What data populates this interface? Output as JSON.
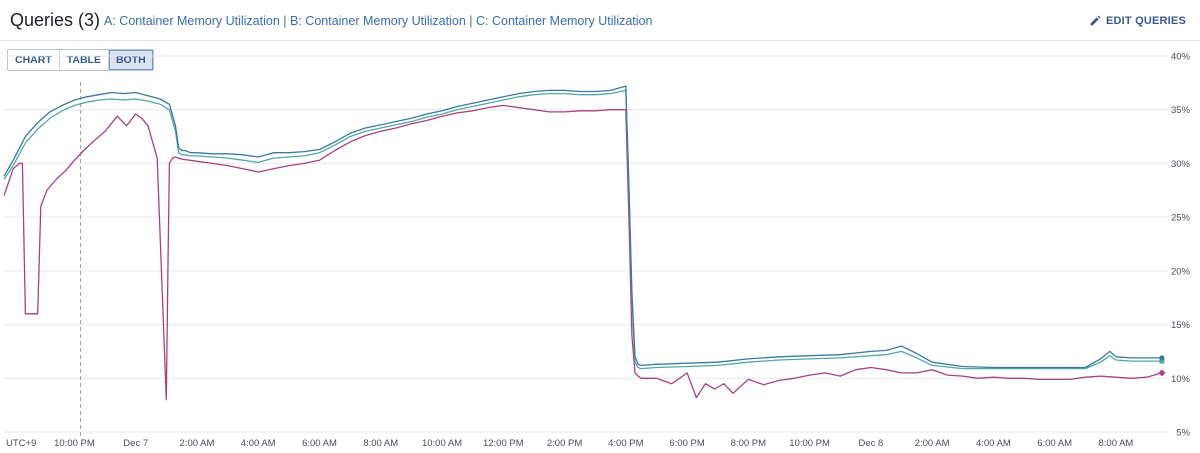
{
  "header": {
    "title": "Queries (3)",
    "queries": [
      {
        "letter": "A:",
        "name": "Container Memory Utilization"
      },
      {
        "letter": "B:",
        "name": "Container Memory Utilization"
      },
      {
        "letter": "C:",
        "name": "Container Memory Utilization"
      }
    ],
    "separator": "|",
    "edit_label": "EDIT QUERIES"
  },
  "view_toggle": {
    "options": [
      "CHART",
      "TABLE",
      "BOTH"
    ],
    "selected": "BOTH"
  },
  "colors": {
    "series_a": "#3b78a6",
    "series_b": "#52a9a6",
    "series_c": "#a8427e",
    "grid": "#e7e9ec",
    "cursor": "#9aa0a6"
  },
  "chart_data": {
    "type": "line",
    "ylim": [
      5,
      40
    ],
    "y_ticks": [
      "40%",
      "35%",
      "30%",
      "25%",
      "20%",
      "15%",
      "10%",
      "5%"
    ],
    "y_tick_values": [
      40,
      35,
      30,
      25,
      20,
      15,
      10,
      5
    ],
    "x_unit": "hours",
    "xlim": [
      -2.3,
      35.7
    ],
    "x_ticks": [
      {
        "label": "UTC+9",
        "x": -2.0
      },
      {
        "label": "10:00 PM",
        "x": 0
      },
      {
        "label": "Dec 7",
        "x": 2
      },
      {
        "label": "2:00 AM",
        "x": 4
      },
      {
        "label": "4:00 AM",
        "x": 6
      },
      {
        "label": "6:00 AM",
        "x": 8
      },
      {
        "label": "8:00 AM",
        "x": 10
      },
      {
        "label": "10:00 AM",
        "x": 12
      },
      {
        "label": "12:00 PM",
        "x": 14
      },
      {
        "label": "2:00 PM",
        "x": 16
      },
      {
        "label": "4:00 PM",
        "x": 18
      },
      {
        "label": "6:00 PM",
        "x": 20
      },
      {
        "label": "8:00 PM",
        "x": 22
      },
      {
        "label": "10:00 PM",
        "x": 24
      },
      {
        "label": "Dec 8",
        "x": 26
      },
      {
        "label": "2:00 AM",
        "x": 28
      },
      {
        "label": "4:00 AM",
        "x": 30
      },
      {
        "label": "6:00 AM",
        "x": 32
      },
      {
        "label": "8:00 AM",
        "x": 34
      }
    ],
    "cursor_x": 0.2,
    "series": [
      {
        "id": "A",
        "x": [
          -2.3,
          -2,
          -1.6,
          -1.2,
          -0.8,
          -0.4,
          0,
          0.4,
          0.8,
          1.2,
          1.6,
          2,
          2.4,
          2.8,
          3.1,
          3.3,
          3.4,
          3.5,
          3.6,
          3.8,
          4,
          4.5,
          5,
          5.5,
          6,
          6.5,
          7,
          7.5,
          8,
          8.5,
          9,
          9.5,
          10,
          10.5,
          11,
          11.5,
          12,
          12.5,
          13,
          13.5,
          14,
          14.5,
          15,
          15.5,
          16,
          16.5,
          17,
          17.5,
          18,
          18.1,
          18.2,
          18.3,
          18.4,
          18.5,
          19,
          20,
          21,
          22,
          23,
          24,
          25,
          26,
          26.5,
          27,
          27.5,
          28,
          29,
          30,
          31,
          32,
          33,
          33.5,
          33.8,
          34,
          34.5,
          35,
          35.5
        ],
        "values": [
          28.8,
          30.3,
          32.5,
          33.8,
          34.8,
          35.4,
          35.9,
          36.2,
          36.4,
          36.6,
          36.5,
          36.6,
          36.3,
          36.0,
          35.5,
          33.5,
          31.5,
          31.2,
          31.2,
          31.0,
          31.0,
          30.9,
          30.9,
          30.8,
          30.6,
          31.0,
          31.0,
          31.1,
          31.3,
          32.0,
          32.8,
          33.3,
          33.6,
          33.9,
          34.2,
          34.6,
          34.9,
          35.3,
          35.6,
          35.9,
          36.2,
          36.5,
          36.7,
          36.8,
          36.8,
          36.7,
          36.7,
          36.8,
          37.2,
          28.0,
          18.0,
          12.0,
          11.3,
          11.2,
          11.3,
          11.4,
          11.5,
          11.8,
          12.0,
          12.1,
          12.2,
          12.5,
          12.6,
          13.0,
          12.3,
          11.5,
          11.1,
          11.0,
          11.0,
          11.0,
          11.0,
          11.8,
          12.5,
          12.0,
          11.9,
          11.9,
          11.9
        ]
      },
      {
        "id": "B",
        "x": [
          -2.3,
          -2,
          -1.6,
          -1.2,
          -0.8,
          -0.4,
          0,
          0.4,
          0.8,
          1.2,
          1.6,
          2,
          2.4,
          2.8,
          3.1,
          3.3,
          3.4,
          3.5,
          3.6,
          3.8,
          4,
          4.5,
          5,
          5.5,
          6,
          6.5,
          7,
          7.5,
          8,
          8.5,
          9,
          9.5,
          10,
          10.5,
          11,
          11.5,
          12,
          12.5,
          13,
          13.5,
          14,
          14.5,
          15,
          15.5,
          16,
          16.5,
          17,
          17.5,
          18,
          18.1,
          18.2,
          18.3,
          18.4,
          18.5,
          19,
          20,
          21,
          22,
          23,
          24,
          25,
          26,
          26.5,
          27,
          27.5,
          28,
          29,
          30,
          31,
          32,
          33,
          33.5,
          33.8,
          34,
          34.5,
          35,
          35.5
        ],
        "values": [
          28.5,
          29.8,
          31.9,
          33.2,
          34.2,
          34.9,
          35.4,
          35.7,
          35.9,
          36.0,
          35.9,
          36.0,
          35.8,
          35.5,
          35.0,
          33.0,
          31.0,
          30.8,
          30.8,
          30.7,
          30.7,
          30.6,
          30.5,
          30.3,
          30.1,
          30.5,
          30.6,
          30.7,
          31.0,
          31.7,
          32.5,
          33.0,
          33.3,
          33.6,
          33.9,
          34.3,
          34.6,
          35.0,
          35.3,
          35.6,
          35.9,
          36.2,
          36.4,
          36.5,
          36.5,
          36.4,
          36.4,
          36.5,
          36.8,
          27.5,
          17.5,
          11.5,
          11.0,
          10.9,
          11.0,
          11.1,
          11.2,
          11.5,
          11.7,
          11.8,
          11.9,
          12.1,
          12.2,
          12.5,
          11.9,
          11.2,
          10.9,
          10.9,
          10.9,
          10.9,
          10.9,
          11.5,
          12.1,
          11.7,
          11.6,
          11.6,
          11.6
        ]
      },
      {
        "id": "C",
        "x": [
          -2.3,
          -2,
          -1.8,
          -1.7,
          -1.6,
          -1.2,
          -1.1,
          -0.9,
          -0.6,
          -0.3,
          0,
          0.3,
          0.6,
          1,
          1.4,
          1.7,
          2,
          2.2,
          2.4,
          2.7,
          3,
          3.05,
          3.1,
          3.2,
          3.3,
          3.5,
          4,
          4.5,
          5,
          5.5,
          6,
          6.5,
          7,
          7.5,
          8,
          8.5,
          9,
          9.5,
          10,
          10.5,
          11,
          11.5,
          12,
          12.5,
          13,
          13.5,
          14,
          14.5,
          15,
          15.5,
          16,
          16.5,
          17,
          17.5,
          18,
          18.1,
          18.2,
          18.3,
          18.4,
          18.5,
          19,
          19.5,
          20,
          20.3,
          20.6,
          20.9,
          21.2,
          21.5,
          22,
          22.5,
          23,
          23.5,
          24,
          24.5,
          25,
          25.5,
          26,
          26.5,
          27,
          27.5,
          28,
          28.5,
          29,
          29.5,
          30,
          30.5,
          31,
          31.5,
          32,
          32.5,
          33,
          33.5,
          34,
          34.5,
          35,
          35.5
        ],
        "values": [
          27,
          29.5,
          30,
          30,
          16,
          16,
          26,
          27.5,
          28.5,
          29.3,
          30.3,
          31.2,
          32.0,
          33.0,
          34.4,
          33.5,
          34.6,
          34.2,
          33.5,
          30.5,
          8,
          20,
          30,
          30.5,
          30.6,
          30.4,
          30.2,
          30.0,
          29.8,
          29.5,
          29.2,
          29.5,
          29.8,
          30.0,
          30.3,
          31.2,
          32.0,
          32.6,
          33.0,
          33.3,
          33.7,
          34.0,
          34.4,
          34.7,
          34.9,
          35.2,
          35.4,
          35.2,
          35.0,
          34.8,
          34.8,
          34.9,
          34.9,
          35.0,
          35.0,
          25.0,
          14.0,
          10.5,
          10.2,
          10.0,
          10.0,
          9.5,
          10.5,
          8.2,
          9.5,
          9.0,
          9.5,
          8.6,
          9.9,
          9.4,
          9.8,
          10.0,
          10.3,
          10.5,
          10.2,
          10.8,
          11.0,
          10.8,
          10.5,
          10.5,
          10.8,
          10.3,
          10.2,
          10.0,
          10.1,
          10.0,
          10.0,
          9.9,
          9.9,
          9.9,
          10.1,
          10.2,
          10.1,
          10.0,
          10.1,
          10.5
        ]
      }
    ]
  }
}
